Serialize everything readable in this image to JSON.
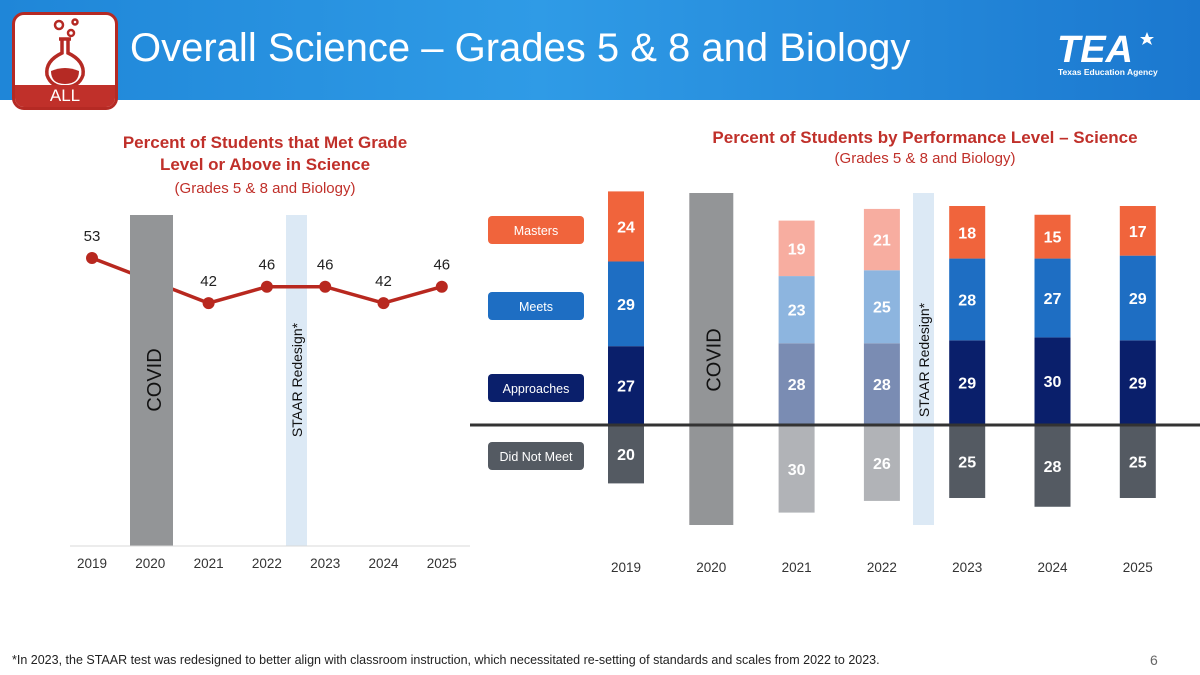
{
  "header": {
    "title": "Overall Science – Grades 5 & 8 and Biology",
    "badge_label": "ALL",
    "logo_text": "TEA",
    "logo_subtext": "Texas Education Agency"
  },
  "footnote": "*In 2023, the STAAR test was redesigned to better align with classroom instruction, which necessitated re-setting of standards and scales from 2022 to 2023.",
  "page_number": "6",
  "colors": {
    "header_blue": "#2a90e0",
    "accent_red": "#c0302a",
    "line_red": "#b8281f",
    "covid_gray": "#939597",
    "redesign_band": "#dce9f5",
    "masters": "#f0643c",
    "meets": "#1e6ec3",
    "approaches": "#0a1f6b",
    "did_not_meet": "#545a62",
    "masters_muted": "#f7ada0",
    "meets_muted": "#8db5df",
    "approaches_muted": "#7a8cb3",
    "did_not_meet_muted": "#b1b3b7"
  },
  "chart_data": [
    {
      "type": "line",
      "title": "Percent of Students that Met Grade Level or Above in Science",
      "title_lines": [
        "Percent of Students that Met Grade",
        "Level or Above in Science"
      ],
      "subtitle": "(Grades 5 & 8 and Biology)",
      "categories": [
        "2019",
        "2020",
        "2021",
        "2022",
        "2023",
        "2024",
        "2025"
      ],
      "series": [
        {
          "name": "Met Grade Level or Above",
          "values": [
            53,
            null,
            42,
            46,
            46,
            42,
            46
          ]
        }
      ],
      "ylim": [
        0,
        60
      ],
      "annotations": [
        {
          "text": "COVID",
          "category": "2020"
        },
        {
          "text": "STAAR Redesign*",
          "between": [
            "2022",
            "2023"
          ]
        }
      ]
    },
    {
      "type": "bar",
      "stacked": "diverging",
      "title": "Percent of Students by Performance Level – Science",
      "subtitle": "(Grades 5 & 8 and Biology)",
      "categories": [
        "2019",
        "2020",
        "2021",
        "2022",
        "2023",
        "2024",
        "2025"
      ],
      "legend": [
        "Masters",
        "Meets",
        "Approaches",
        "Did Not Meet"
      ],
      "series": [
        {
          "name": "Masters",
          "values": [
            24,
            null,
            19,
            21,
            18,
            15,
            17
          ]
        },
        {
          "name": "Meets",
          "values": [
            29,
            null,
            23,
            25,
            28,
            27,
            29
          ]
        },
        {
          "name": "Approaches",
          "values": [
            27,
            null,
            28,
            28,
            29,
            30,
            29
          ]
        },
        {
          "name": "Did Not Meet",
          "values": [
            20,
            null,
            30,
            26,
            25,
            28,
            25
          ]
        }
      ],
      "muted_categories": [
        "2021",
        "2022"
      ],
      "annotations": [
        {
          "text": "COVID",
          "category": "2020"
        },
        {
          "text": "STAAR Redesign*",
          "between": [
            "2022",
            "2023"
          ]
        }
      ]
    }
  ]
}
